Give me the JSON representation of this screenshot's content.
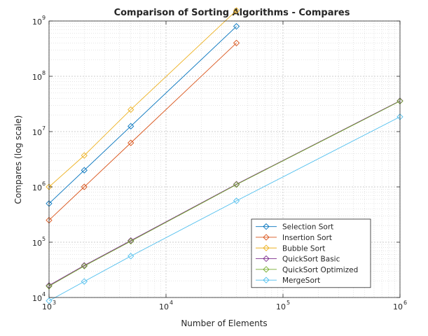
{
  "chart_data": {
    "type": "line",
    "title": "Comparison of Sorting Algorithms - Compares",
    "xlabel": "Number of Elements",
    "ylabel": "Compares (log scale)",
    "xscale": "log",
    "yscale": "log",
    "xlim": [
      1000,
      1000000
    ],
    "ylim": [
      10000,
      1000000000
    ],
    "x_ticks": [
      {
        "base": "10",
        "exp": "3",
        "value": 1000
      },
      {
        "base": "10",
        "exp": "4",
        "value": 10000
      },
      {
        "base": "10",
        "exp": "5",
        "value": 100000
      },
      {
        "base": "10",
        "exp": "6",
        "value": 1000000
      }
    ],
    "y_ticks": [
      {
        "base": "10",
        "exp": "4",
        "value": 10000
      },
      {
        "base": "10",
        "exp": "5",
        "value": 100000
      },
      {
        "base": "10",
        "exp": "6",
        "value": 1000000
      },
      {
        "base": "10",
        "exp": "7",
        "value": 10000000
      },
      {
        "base": "10",
        "exp": "8",
        "value": 100000000
      },
      {
        "base": "10",
        "exp": "9",
        "value": 1000000000
      }
    ],
    "grid": true,
    "minor_grid": true,
    "legend_position": "bottom-right",
    "marker": "diamond",
    "series": [
      {
        "name": "Selection Sort",
        "color": "#0072bd",
        "x": [
          1000,
          2000,
          5000,
          40000
        ],
        "y": [
          500000,
          2000000,
          12500000,
          800000000
        ]
      },
      {
        "name": "Insertion Sort",
        "color": "#d95319",
        "x": [
          1000,
          2000,
          5000,
          40000
        ],
        "y": [
          250000,
          1000000,
          6250000,
          400000000
        ]
      },
      {
        "name": "Bubble Sort",
        "color": "#edb120",
        "x": [
          1000,
          2000,
          5000,
          40000
        ],
        "y": [
          1000000,
          3700000,
          25000000,
          1550000000
        ]
      },
      {
        "name": "QuickSort Basic",
        "color": "#7e2f8e",
        "x": [
          1000,
          2000,
          5000,
          40000,
          1000000
        ],
        "y": [
          16500,
          38000,
          107000,
          1120000,
          36000000
        ]
      },
      {
        "name": "QuickSort Optimized",
        "color": "#77ac30",
        "x": [
          1000,
          2000,
          5000,
          40000,
          1000000
        ],
        "y": [
          16000,
          37000,
          104000,
          1100000,
          35500000
        ]
      },
      {
        "name": "MergeSort",
        "color": "#4dbeee",
        "x": [
          1000,
          2000,
          5000,
          40000,
          1000000
        ],
        "y": [
          8700,
          19500,
          56000,
          560000,
          18500000
        ]
      }
    ]
  }
}
